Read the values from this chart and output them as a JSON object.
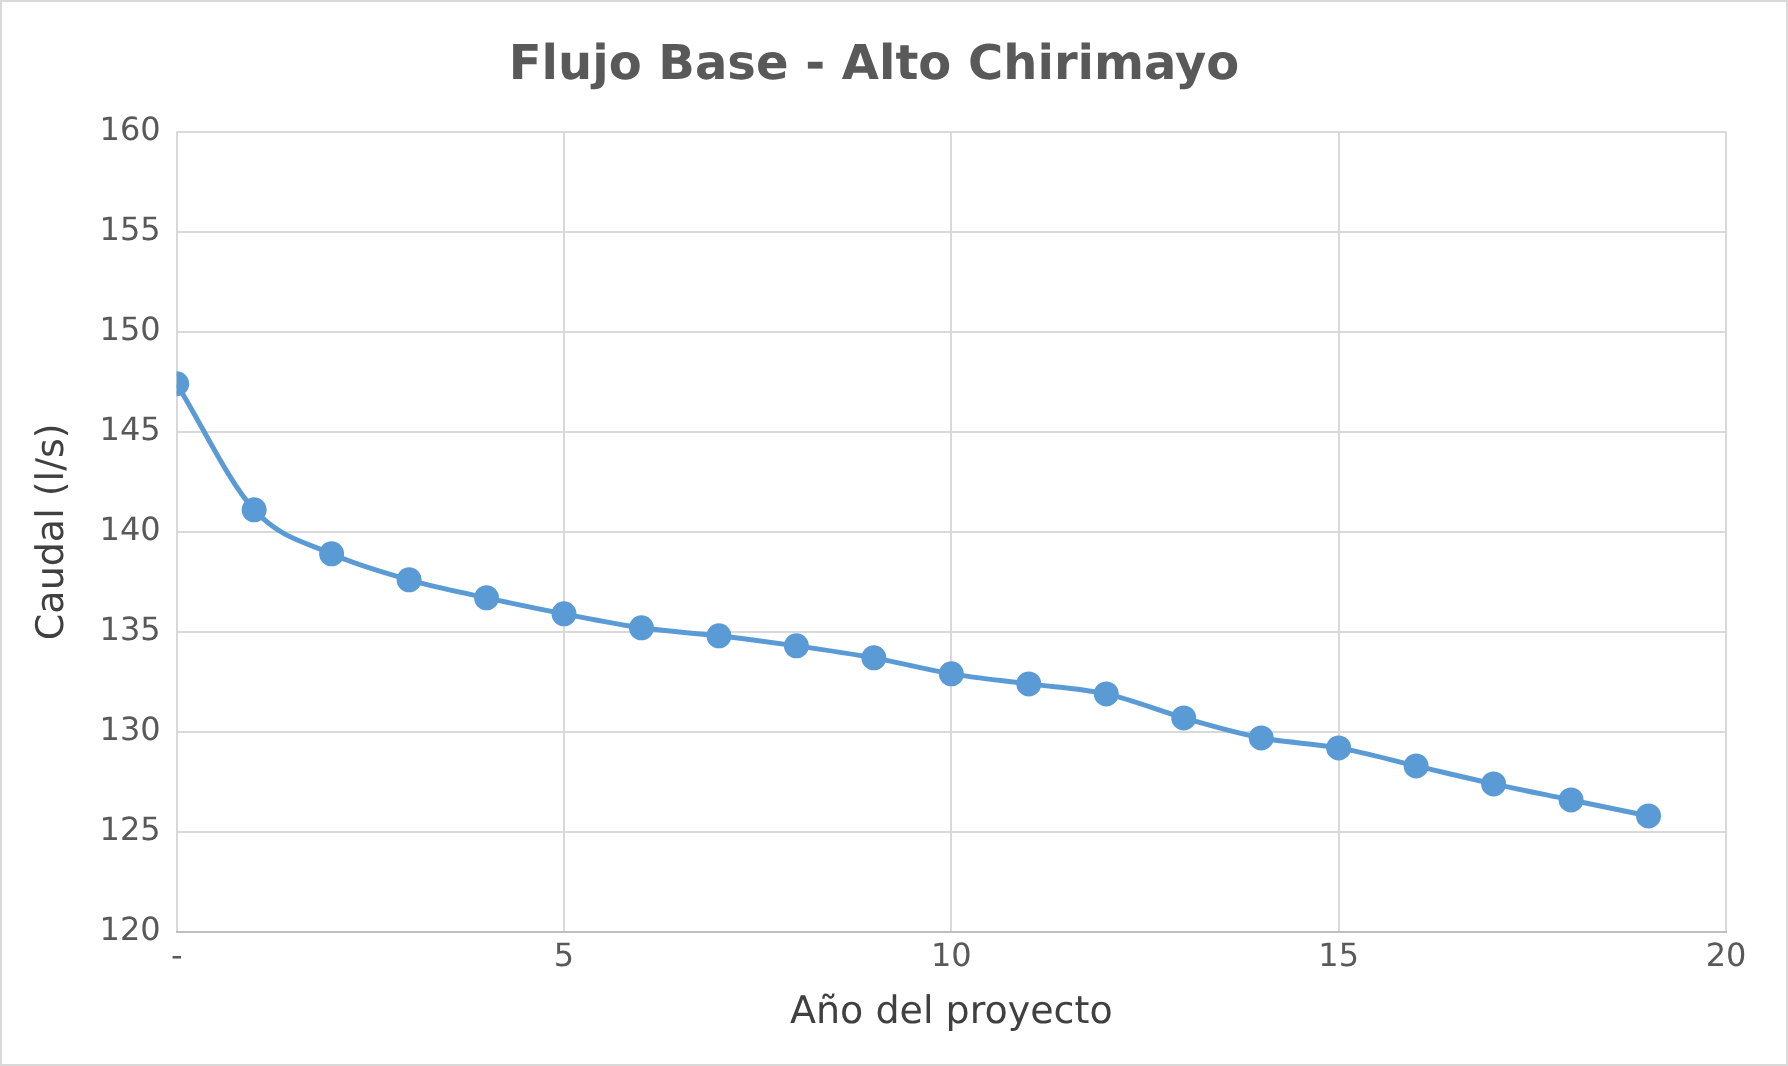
{
  "chart_data": {
    "type": "line",
    "title": "Flujo Base - Alto Chirimayo",
    "xlabel": "Año del proyecto",
    "ylabel": "Caudal (l/s)",
    "x": [
      0,
      1,
      2,
      3,
      4,
      5,
      6,
      7,
      8,
      9,
      10,
      11,
      12,
      13,
      14,
      15,
      16,
      17,
      18,
      19
    ],
    "series": [
      {
        "color": "#5b9bd5",
        "values": [
          147.4,
          141.1,
          138.9,
          137.6,
          136.7,
          135.9,
          135.2,
          134.8,
          134.3,
          133.7,
          132.9,
          132.4,
          131.9,
          130.7,
          129.7,
          129.2,
          128.3,
          127.4,
          126.6,
          125.8
        ]
      }
    ],
    "xlim": [
      0,
      20
    ],
    "xticks": [
      {
        "value": 0,
        "label": "-"
      },
      5,
      10,
      15,
      20
    ],
    "ylim": [
      120,
      160
    ],
    "yticks": [
      120,
      125,
      130,
      135,
      140,
      145,
      150,
      155,
      160
    ],
    "grid": true,
    "legend": false,
    "marker": "circle",
    "line_style": "solid"
  }
}
